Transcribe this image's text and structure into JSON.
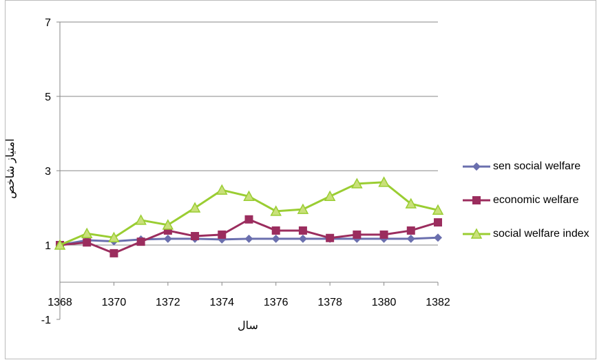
{
  "chart_data": {
    "type": "line",
    "x_label": "سال",
    "y_label": "امتیاز شاخص",
    "x": [
      1368,
      1369,
      1370,
      1371,
      1372,
      1373,
      1374,
      1375,
      1376,
      1377,
      1378,
      1379,
      1380,
      1381,
      1382
    ],
    "xlim": [
      1368,
      1382
    ],
    "xticks": [
      1368,
      1370,
      1372,
      1374,
      1376,
      1378,
      1380,
      1382
    ],
    "ylim": [
      -1,
      7
    ],
    "yticks": [
      -1,
      1,
      3,
      5,
      7
    ],
    "grid": true,
    "legend": "right",
    "series": [
      {
        "name": "sen social welfare",
        "color": "#6a6fae",
        "marker": "diamond",
        "values": [
          1.0,
          1.13,
          1.1,
          1.15,
          1.17,
          1.17,
          1.15,
          1.17,
          1.17,
          1.17,
          1.17,
          1.17,
          1.17,
          1.17,
          1.2
        ]
      },
      {
        "name": "economic welfare",
        "color": "#9b2d5e",
        "marker": "square",
        "values": [
          1.0,
          1.07,
          0.78,
          1.09,
          1.39,
          1.24,
          1.28,
          1.69,
          1.39,
          1.39,
          1.19,
          1.28,
          1.28,
          1.39,
          1.61
        ]
      },
      {
        "name": "social welfare index",
        "color": "#9acd32",
        "marker": "triangle",
        "values": [
          1.0,
          1.31,
          1.2,
          1.67,
          1.54,
          2.0,
          2.48,
          2.31,
          1.91,
          1.96,
          2.31,
          2.65,
          2.69,
          2.11,
          1.94
        ]
      }
    ]
  }
}
